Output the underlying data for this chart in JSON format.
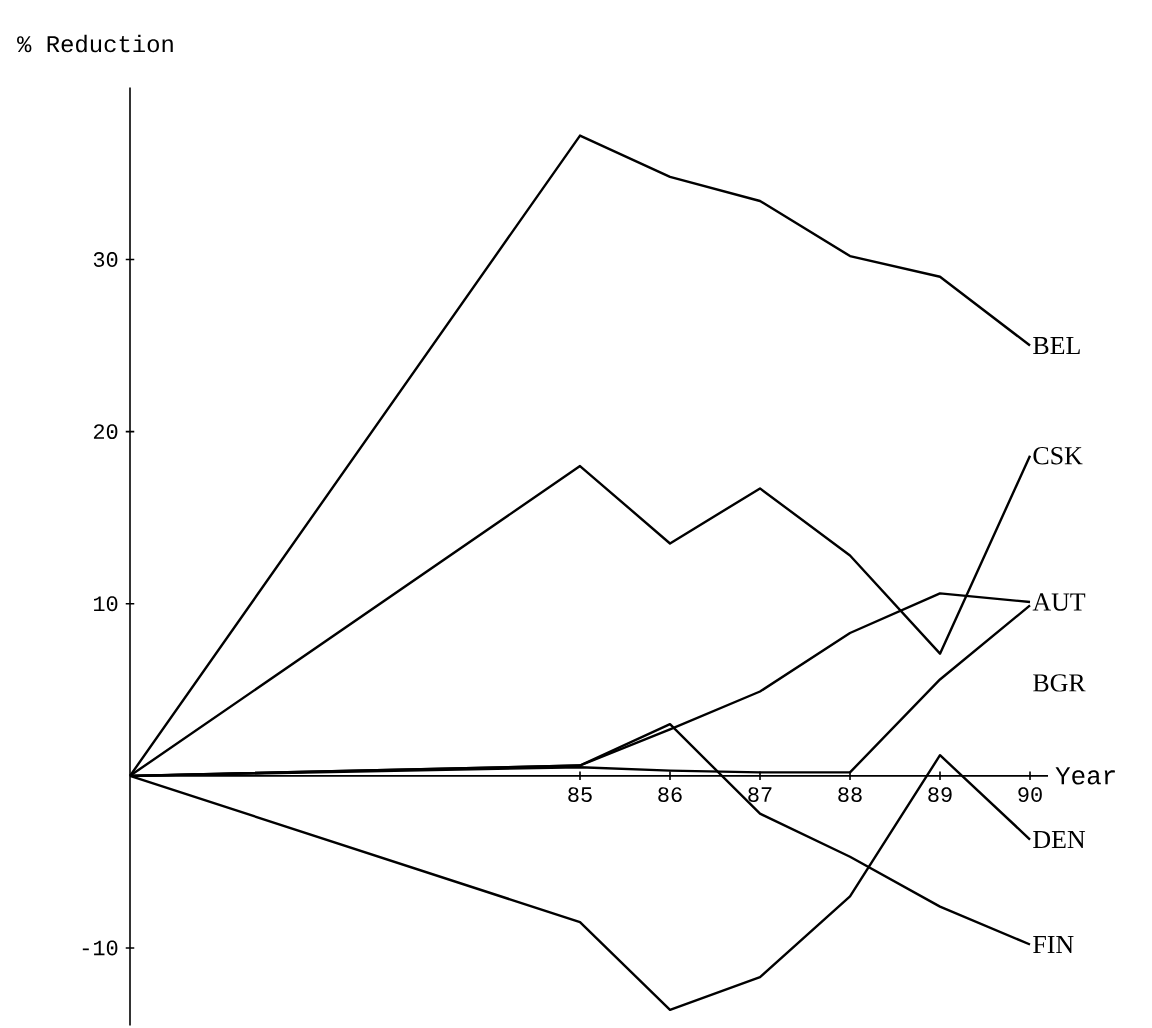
{
  "chart_data": {
    "type": "line",
    "xlabel": "Year",
    "ylabel": "% Reduction",
    "xlim": [
      80,
      90.2
    ],
    "ylim": [
      -14.5,
      40
    ],
    "xticks": [
      85,
      86,
      87,
      88,
      89,
      90
    ],
    "yticks": [
      -10,
      10,
      20,
      30
    ],
    "x": [
      80,
      85,
      86,
      87,
      88,
      89,
      90
    ],
    "grid": false,
    "marker": "none",
    "line_style": "solid",
    "series": [
      {
        "name": "BEL",
        "color": "#000000",
        "values": [
          0,
          37.2,
          34.8,
          33.4,
          30.2,
          29.0,
          25.0
        ]
      },
      {
        "name": "CSK",
        "color": "#000000",
        "values": [
          0,
          18.0,
          13.5,
          16.7,
          12.8,
          7.1,
          18.6
        ]
      },
      {
        "name": "AUT",
        "color": "#000000",
        "values": [
          0,
          0.6,
          2.7,
          4.9,
          8.3,
          10.6,
          10.1
        ]
      },
      {
        "name": "BGR",
        "color": "#000000",
        "values": [
          0,
          0.5,
          0.3,
          0.2,
          0.2,
          5.6,
          9.9
        ]
      },
      {
        "name": "DEN",
        "color": "#000000",
        "values": [
          0,
          -8.5,
          -13.6,
          -11.7,
          -7.0,
          1.2,
          -3.7
        ]
      },
      {
        "name": "FIN",
        "color": "#000000",
        "values": [
          0,
          0.6,
          3.0,
          -2.2,
          -4.7,
          -7.6,
          -9.8
        ]
      }
    ]
  }
}
